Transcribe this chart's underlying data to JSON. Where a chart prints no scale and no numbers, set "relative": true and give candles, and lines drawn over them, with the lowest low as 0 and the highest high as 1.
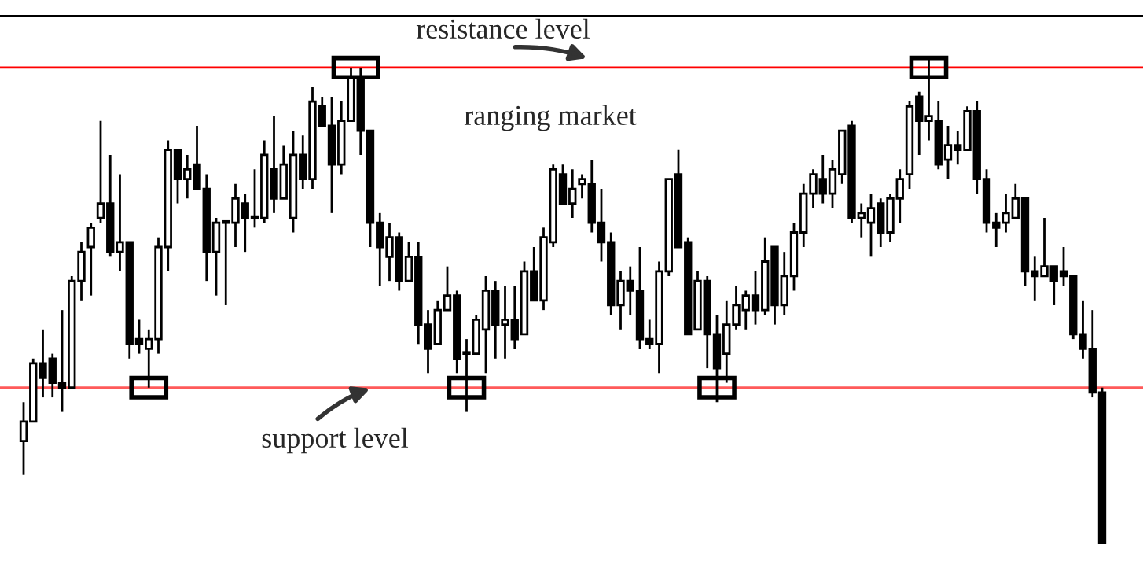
{
  "chart_data": {
    "type": "candlestick",
    "relative": true,
    "categories": [
      null,
      null,
      null,
      null,
      null,
      null,
      null,
      null,
      null,
      null,
      null,
      null,
      null,
      null,
      null,
      null,
      null,
      null,
      null,
      null,
      null,
      null,
      null,
      null,
      null,
      null,
      null,
      null,
      null,
      null,
      null,
      null,
      null,
      null,
      null,
      null,
      null,
      null,
      null,
      null,
      null,
      null,
      null,
      null,
      null,
      null,
      null,
      null,
      null,
      null,
      null,
      null,
      null,
      null,
      null,
      null,
      null,
      null,
      null,
      null,
      null,
      null,
      null,
      null,
      null,
      null,
      null,
      null,
      null,
      null,
      null,
      null,
      null,
      null,
      null,
      null,
      null,
      null,
      null,
      null,
      null,
      null,
      null,
      null,
      null,
      null,
      null,
      null,
      null,
      null,
      null,
      null,
      null,
      null,
      null,
      null,
      null,
      null,
      null,
      null,
      null,
      null,
      null,
      null,
      null,
      null,
      null,
      null,
      null,
      null,
      null,
      null,
      null
    ],
    "ohlc": [
      [
        0.21,
        0.29,
        0.14,
        0.25
      ],
      [
        0.25,
        0.38,
        0.25,
        0.37
      ],
      [
        0.37,
        0.44,
        0.3,
        0.34
      ],
      [
        0.38,
        0.39,
        0.3,
        0.33
      ],
      [
        0.33,
        0.48,
        0.27,
        0.32
      ],
      [
        0.32,
        0.55,
        0.32,
        0.54
      ],
      [
        0.54,
        0.62,
        0.5,
        0.6
      ],
      [
        0.61,
        0.66,
        0.51,
        0.65
      ],
      [
        0.67,
        0.87,
        0.66,
        0.7
      ],
      [
        0.7,
        0.8,
        0.59,
        0.6
      ],
      [
        0.6,
        0.76,
        0.56,
        0.62
      ],
      [
        0.62,
        0.62,
        0.38,
        0.41
      ],
      [
        0.42,
        0.46,
        0.39,
        0.41
      ],
      [
        0.4,
        0.44,
        0.32,
        0.42
      ],
      [
        0.42,
        0.63,
        0.39,
        0.61
      ],
      [
        0.61,
        0.83,
        0.56,
        0.81
      ],
      [
        0.81,
        0.81,
        0.7,
        0.75
      ],
      [
        0.75,
        0.8,
        0.71,
        0.77
      ],
      [
        0.78,
        0.86,
        0.73,
        0.73
      ],
      [
        0.73,
        0.76,
        0.54,
        0.6
      ],
      [
        0.6,
        0.67,
        0.51,
        0.66
      ],
      [
        0.66,
        0.66,
        0.49,
        0.66
      ],
      [
        0.66,
        0.74,
        0.61,
        0.71
      ],
      [
        0.7,
        0.72,
        0.6,
        0.67
      ],
      [
        0.67,
        0.77,
        0.65,
        0.67
      ],
      [
        0.67,
        0.83,
        0.66,
        0.8
      ],
      [
        0.77,
        0.88,
        0.68,
        0.71
      ],
      [
        0.71,
        0.82,
        0.71,
        0.78
      ],
      [
        0.67,
        0.85,
        0.64,
        0.8
      ],
      [
        0.8,
        0.84,
        0.73,
        0.75
      ],
      [
        0.75,
        0.94,
        0.73,
        0.91
      ],
      [
        0.9,
        0.92,
        0.86,
        0.86
      ],
      [
        0.86,
        0.92,
        0.68,
        0.78
      ],
      [
        0.78,
        0.91,
        0.76,
        0.87
      ],
      [
        0.87,
        0.98,
        0.87,
        0.96
      ],
      [
        0.96,
        0.98,
        0.8,
        0.85
      ],
      [
        0.85,
        0.85,
        0.61,
        0.66
      ],
      [
        0.66,
        0.68,
        0.53,
        0.61
      ],
      [
        0.59,
        0.66,
        0.54,
        0.63
      ],
      [
        0.63,
        0.64,
        0.52,
        0.54
      ],
      [
        0.54,
        0.62,
        0.54,
        0.59
      ],
      [
        0.59,
        0.62,
        0.41,
        0.45
      ],
      [
        0.45,
        0.48,
        0.35,
        0.4
      ],
      [
        0.41,
        0.5,
        0.41,
        0.48
      ],
      [
        0.48,
        0.57,
        0.48,
        0.51
      ],
      [
        0.51,
        0.52,
        0.35,
        0.38
      ],
      [
        0.39,
        0.42,
        0.27,
        0.39
      ],
      [
        0.39,
        0.47,
        0.39,
        0.46
      ],
      [
        0.44,
        0.55,
        0.35,
        0.52
      ],
      [
        0.52,
        0.54,
        0.38,
        0.45
      ],
      [
        0.45,
        0.53,
        0.38,
        0.46
      ],
      [
        0.46,
        0.53,
        0.4,
        0.42
      ],
      [
        0.43,
        0.58,
        0.43,
        0.56
      ],
      [
        0.56,
        0.61,
        0.5,
        0.5
      ],
      [
        0.5,
        0.65,
        0.48,
        0.63
      ],
      [
        0.62,
        0.78,
        0.61,
        0.77
      ],
      [
        0.76,
        0.78,
        0.7,
        0.7
      ],
      [
        0.7,
        0.77,
        0.67,
        0.73
      ],
      [
        0.74,
        0.76,
        0.71,
        0.75
      ],
      [
        0.74,
        0.79,
        0.64,
        0.66
      ],
      [
        0.66,
        0.73,
        0.58,
        0.62
      ],
      [
        0.62,
        0.64,
        0.47,
        0.49
      ],
      [
        0.49,
        0.56,
        0.44,
        0.54
      ],
      [
        0.54,
        0.57,
        0.47,
        0.52
      ],
      [
        0.52,
        0.61,
        0.4,
        0.42
      ],
      [
        0.42,
        0.46,
        0.4,
        0.41
      ],
      [
        0.41,
        0.58,
        0.35,
        0.56
      ],
      [
        0.56,
        0.75,
        0.55,
        0.75
      ],
      [
        0.76,
        0.81,
        0.61,
        0.61
      ],
      [
        0.62,
        0.63,
        0.43,
        0.43
      ],
      [
        0.44,
        0.56,
        0.44,
        0.54
      ],
      [
        0.54,
        0.55,
        0.36,
        0.43
      ],
      [
        0.43,
        0.47,
        0.29,
        0.36
      ],
      [
        0.39,
        0.5,
        0.33,
        0.45
      ],
      [
        0.45,
        0.53,
        0.44,
        0.49
      ],
      [
        0.48,
        0.52,
        0.44,
        0.51
      ],
      [
        0.51,
        0.56,
        0.45,
        0.48
      ],
      [
        0.48,
        0.63,
        0.47,
        0.58
      ],
      [
        0.61,
        0.61,
        0.45,
        0.49
      ],
      [
        0.49,
        0.6,
        0.47,
        0.55
      ],
      [
        0.55,
        0.66,
        0.52,
        0.64
      ],
      [
        0.64,
        0.74,
        0.61,
        0.72
      ],
      [
        0.72,
        0.77,
        0.69,
        0.76
      ],
      [
        0.75,
        0.8,
        0.7,
        0.72
      ],
      [
        0.72,
        0.79,
        0.69,
        0.77
      ],
      [
        0.76,
        0.85,
        0.74,
        0.85
      ],
      [
        0.86,
        0.87,
        0.66,
        0.67
      ],
      [
        0.67,
        0.7,
        0.63,
        0.68
      ],
      [
        0.66,
        0.72,
        0.59,
        0.69
      ],
      [
        0.7,
        0.71,
        0.61,
        0.64
      ],
      [
        0.64,
        0.72,
        0.62,
        0.71
      ],
      [
        0.71,
        0.77,
        0.66,
        0.75
      ],
      [
        0.76,
        0.91,
        0.73,
        0.9
      ],
      [
        0.92,
        0.93,
        0.8,
        0.87
      ],
      [
        0.87,
        1,
        0.83,
        0.88
      ],
      [
        0.87,
        0.91,
        0.77,
        0.78
      ],
      [
        0.79,
        0.86,
        0.75,
        0.82
      ],
      [
        0.82,
        0.85,
        0.78,
        0.81
      ],
      [
        0.81,
        0.9,
        0.81,
        0.89
      ],
      [
        0.89,
        0.91,
        0.72,
        0.75
      ],
      [
        0.75,
        0.77,
        0.64,
        0.66
      ],
      [
        0.66,
        0.68,
        0.61,
        0.65
      ],
      [
        0.66,
        0.72,
        0.64,
        0.68
      ],
      [
        0.67,
        0.74,
        0.67,
        0.71
      ],
      [
        0.71,
        0.71,
        0.53,
        0.56
      ],
      [
        0.56,
        0.59,
        0.5,
        0.55
      ],
      [
        0.55,
        0.67,
        0.55,
        0.57
      ],
      [
        0.57,
        0.57,
        0.49,
        0.54
      ],
      [
        0.56,
        0.61,
        0.53,
        0.55
      ],
      [
        0.55,
        0.55,
        0.42,
        0.43
      ],
      [
        0.43,
        0.5,
        0.38,
        0.4
      ],
      [
        0.4,
        0.48,
        0.3,
        0.31
      ],
      [
        0.31,
        0.32,
        0,
        0
      ]
    ],
    "ref_lines": [
      {
        "axis": "y",
        "value": 0.98,
        "label": "resistance level",
        "color": "#ff0000"
      },
      {
        "axis": "y",
        "value": 0.32,
        "label": "support level",
        "color": "#ff5a5a"
      }
    ],
    "annotations": [
      "ranging market"
    ]
  }
}
